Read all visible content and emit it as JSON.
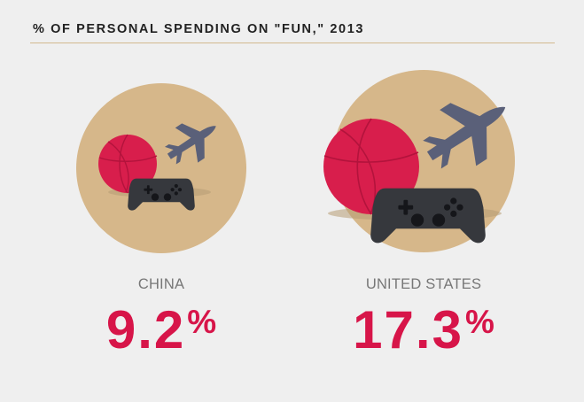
{
  "chart_data": {
    "type": "other",
    "title": "% OF PERSONAL SPENDING ON \"FUN,\" 2013",
    "categories": [
      "CHINA",
      "UNITED STATES"
    ],
    "values": [
      9.2,
      17.3
    ],
    "value_labels": [
      "9.2",
      "17.3"
    ],
    "value_suffix": "%",
    "icons": [
      "basketball-icon",
      "airplane-icon",
      "game-controller-icon"
    ],
    "colors": {
      "circle": "#d6b78a",
      "basketball": "#d81e4c",
      "airplane": "#5a6079",
      "controller": "#36383d",
      "value_text": "#d71549",
      "label_text": "#777777",
      "title_text": "#222222",
      "rule": "#d3b98f"
    }
  }
}
